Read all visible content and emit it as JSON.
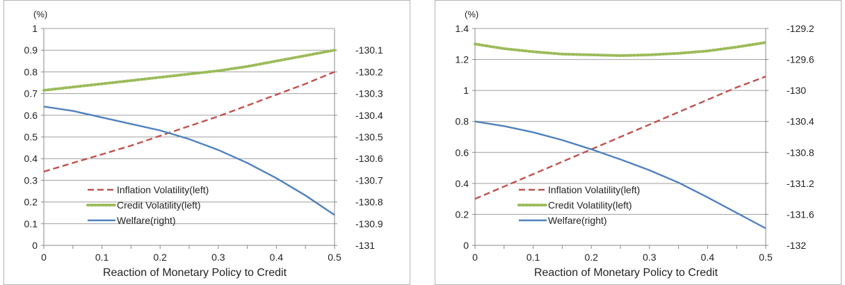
{
  "chart_data": [
    {
      "type": "line",
      "xlabel": "Reaction of Monetary Policy to Credit",
      "left_unit": "(%)",
      "x_ticks": [
        "0",
        "0.1",
        "0.2",
        "0.3",
        "0.4",
        "0.5"
      ],
      "xlim": [
        0,
        0.5
      ],
      "ylim_left": [
        0,
        1.0
      ],
      "y_left_ticks": [
        "0",
        "0.1",
        "0.2",
        "0.3",
        "0.4",
        "0.5",
        "0.6",
        "0.7",
        "0.8",
        "0.9",
        "1"
      ],
      "ylim_right": [
        -131.0,
        -130.0
      ],
      "y_right_ticks": [
        "-131",
        "-130.9",
        "-130.8",
        "-130.7",
        "-130.6",
        "-130.5",
        "-130.4",
        "-130.3",
        "-130.2",
        "-130.1"
      ],
      "grid": true,
      "legend_position": "bottom-center",
      "x": [
        0,
        0.05,
        0.1,
        0.15,
        0.2,
        0.25,
        0.3,
        0.35,
        0.4,
        0.45,
        0.5
      ],
      "series": [
        {
          "name": "Inflation Volatility(left)",
          "axis": "left",
          "style": "dashed",
          "color": "#c0504d",
          "values": [
            0.34,
            0.38,
            0.42,
            0.46,
            0.505,
            0.55,
            0.595,
            0.645,
            0.695,
            0.745,
            0.8
          ]
        },
        {
          "name": "Credit Volatility(left)",
          "axis": "left",
          "style": "dotted",
          "color": "#9bbb59",
          "values": [
            0.715,
            0.73,
            0.745,
            0.76,
            0.775,
            0.79,
            0.805,
            0.825,
            0.85,
            0.875,
            0.9
          ]
        },
        {
          "name": "Welfare(right)",
          "axis": "right",
          "style": "solid",
          "color": "#4f81bd",
          "values": [
            -130.36,
            -130.38,
            -130.41,
            -130.44,
            -130.47,
            -130.51,
            -130.56,
            -130.62,
            -130.69,
            -130.77,
            -130.86
          ]
        }
      ]
    },
    {
      "type": "line",
      "xlabel": "Reaction of Monetary Policy to Credit",
      "left_unit": "(%)",
      "x_ticks": [
        "0",
        "0.1",
        "0.2",
        "0.3",
        "0.4",
        "0.5"
      ],
      "xlim": [
        0,
        0.5
      ],
      "ylim_left": [
        0,
        1.4
      ],
      "y_left_ticks": [
        "0",
        "0.2",
        "0.4",
        "0.6",
        "0.8",
        "1",
        "1.2",
        "1.4"
      ],
      "ylim_right": [
        -132.0,
        -129.2
      ],
      "y_right_ticks": [
        "-132",
        "-131.6",
        "-131.2",
        "-130.8",
        "-130.4",
        "-130",
        "-129.6",
        "-129.2"
      ],
      "grid": true,
      "legend_position": "bottom-center",
      "x": [
        0,
        0.05,
        0.1,
        0.15,
        0.2,
        0.25,
        0.3,
        0.35,
        0.4,
        0.45,
        0.5
      ],
      "series": [
        {
          "name": "Inflation Volatility(left)",
          "axis": "left",
          "style": "dashed",
          "color": "#c0504d",
          "values": [
            0.3,
            0.38,
            0.46,
            0.54,
            0.62,
            0.7,
            0.78,
            0.86,
            0.94,
            1.02,
            1.09
          ]
        },
        {
          "name": "Credit Volatility(left)",
          "axis": "left",
          "style": "dotted",
          "color": "#9bbb59",
          "values": [
            1.3,
            1.27,
            1.25,
            1.235,
            1.23,
            1.225,
            1.23,
            1.24,
            1.255,
            1.28,
            1.31
          ]
        },
        {
          "name": "Welfare(right)",
          "axis": "right",
          "style": "solid",
          "color": "#4f81bd",
          "values": [
            -130.4,
            -130.46,
            -130.54,
            -130.64,
            -130.76,
            -130.89,
            -131.03,
            -131.19,
            -131.38,
            -131.58,
            -131.78
          ]
        }
      ]
    }
  ]
}
